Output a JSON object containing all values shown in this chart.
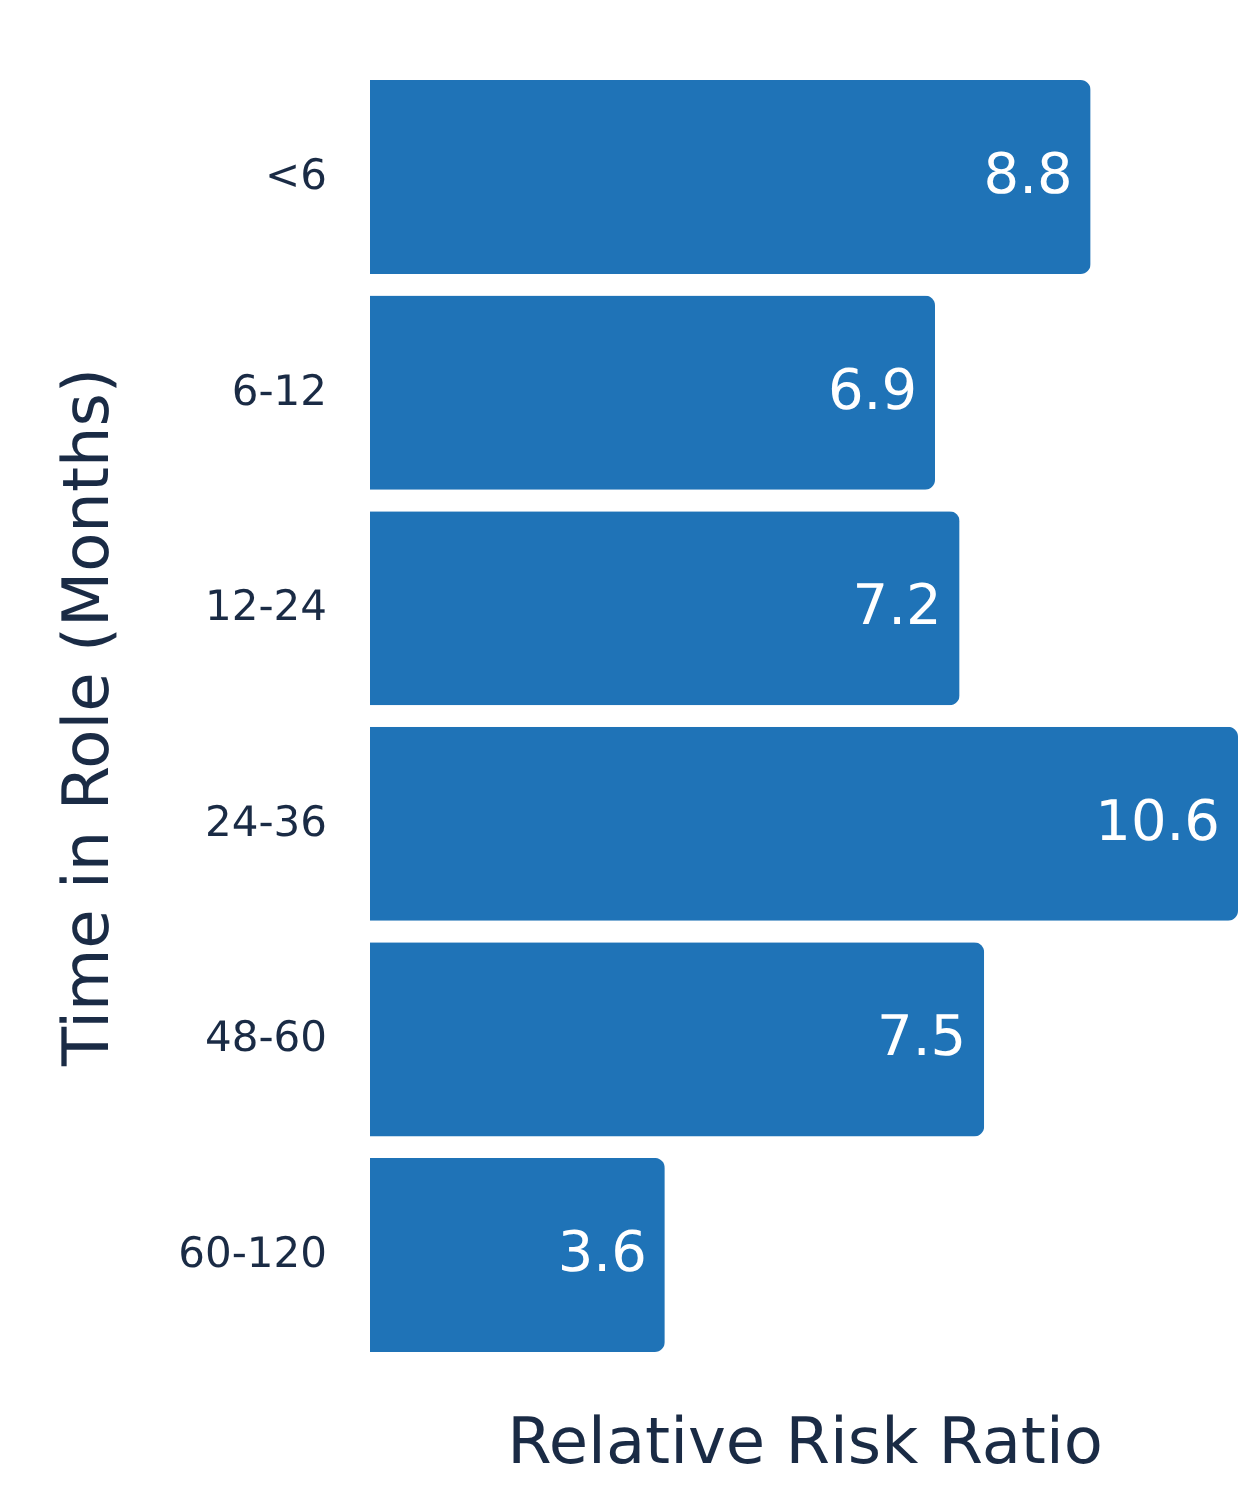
{
  "chart_data": {
    "type": "bar",
    "orientation": "horizontal",
    "xlabel": "Relative Risk Ratio",
    "ylabel": "Time in Role (Months)",
    "categories": [
      "<6",
      "6-12",
      "12-24",
      "24-36",
      "48-60",
      "60-120"
    ],
    "values": [
      8.8,
      6.9,
      7.2,
      10.6,
      7.5,
      3.6
    ],
    "color": "#1f73b7",
    "xlim": [
      0,
      10.6
    ],
    "data_labels": true,
    "tick_labels": "y"
  }
}
